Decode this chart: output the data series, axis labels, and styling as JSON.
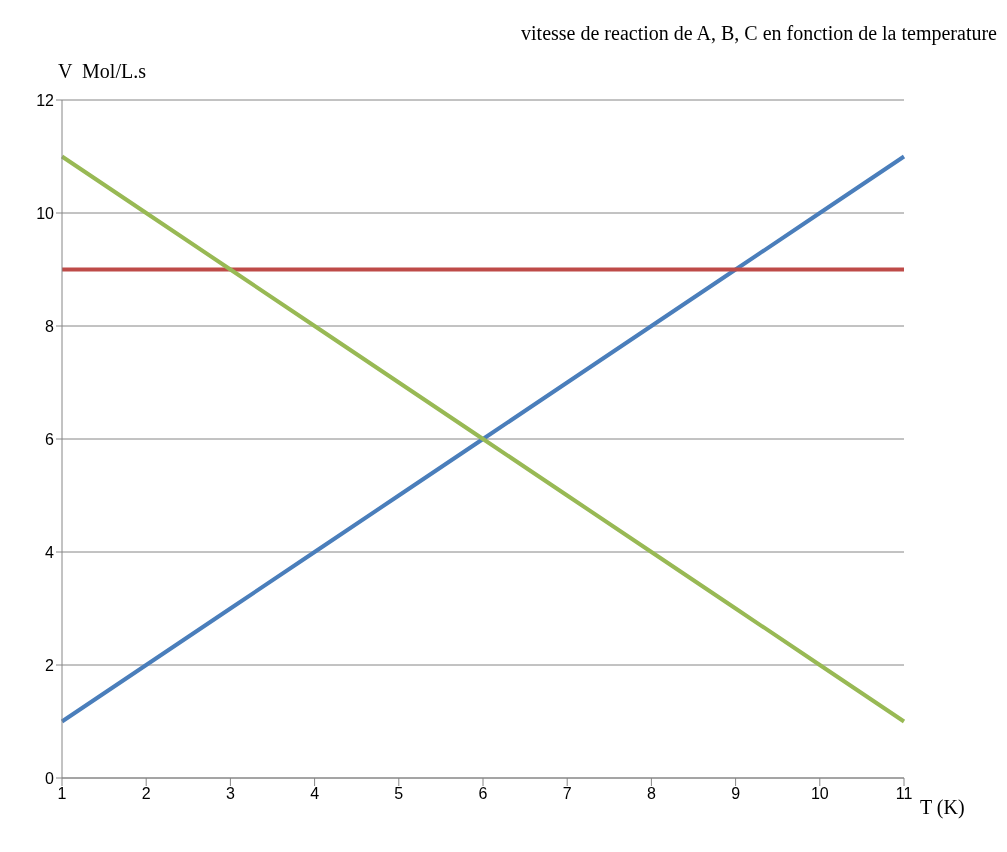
{
  "chart_data": {
    "type": "line",
    "title": "vitesse de reaction de A, B, C en fonction de la temperature",
    "xlabel": "T (K)",
    "ylabel": "V  Mol/L.s",
    "categories": [
      "1",
      "2",
      "3",
      "4",
      "5",
      "6",
      "7",
      "8",
      "9",
      "10",
      "11"
    ],
    "series": [
      {
        "color": "#4a7ebb",
        "values": [
          1,
          2,
          3,
          4,
          5,
          6,
          7,
          8,
          9,
          10,
          11
        ]
      },
      {
        "color": "#be4b48",
        "values": [
          9,
          9,
          9,
          9,
          9,
          9,
          9,
          9,
          9,
          9,
          9
        ]
      },
      {
        "color": "#98b954",
        "values": [
          11,
          10,
          9,
          8,
          7,
          6,
          5,
          4,
          3,
          2,
          1
        ]
      }
    ],
    "ylim": [
      0,
      12
    ],
    "yticks": [
      0,
      2,
      4,
      6,
      8,
      10,
      12
    ],
    "grid": "y",
    "legend": false,
    "marker": "none",
    "line_style": "solid"
  }
}
